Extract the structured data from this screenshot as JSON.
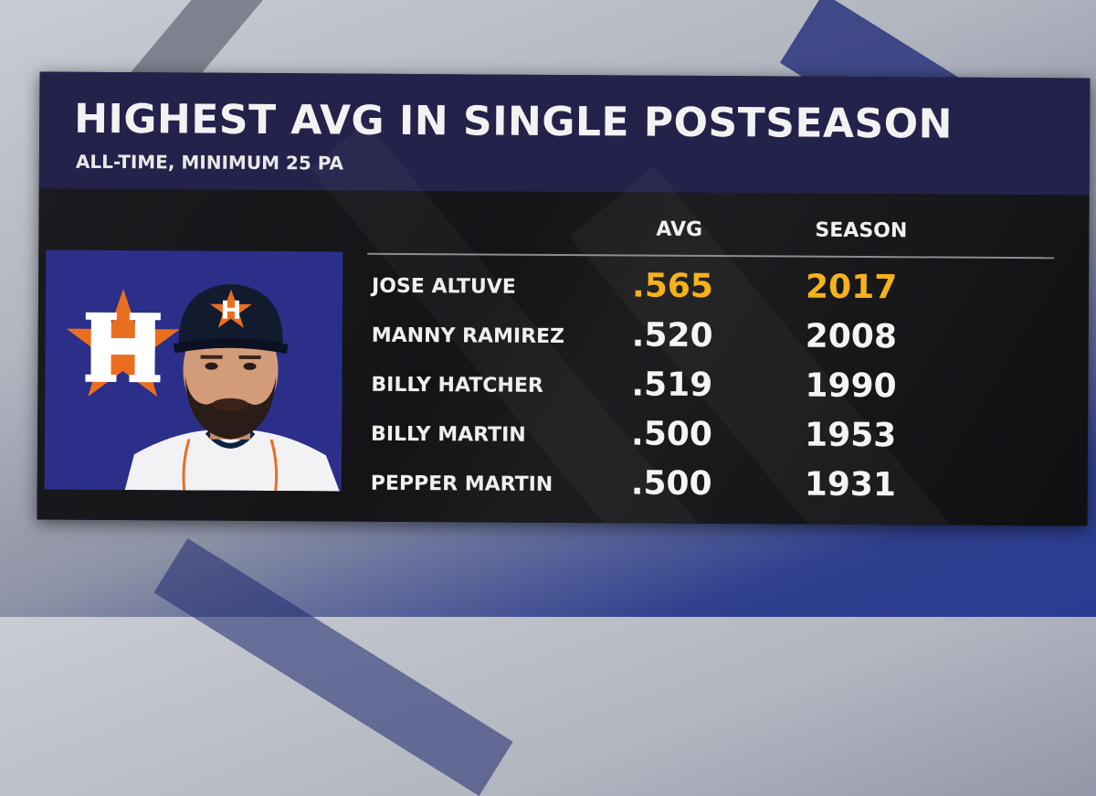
{
  "graphic": {
    "title": "HIGHEST AVG IN SINGLE POSTSEASON",
    "subtitle": "ALL-TIME, MINIMUM 25 PA"
  },
  "table": {
    "columns": [
      "AVG",
      "SEASON"
    ],
    "rows": [
      {
        "player": "JOSE ALTUVE",
        "avg": ".565",
        "season": "2017",
        "highlighted": true
      },
      {
        "player": "MANNY RAMIREZ",
        "avg": ".520",
        "season": "2008",
        "highlighted": false
      },
      {
        "player": "BILLY HATCHER",
        "avg": ".519",
        "season": "1990",
        "highlighted": false
      },
      {
        "player": "BILLY MARTIN",
        "avg": ".500",
        "season": "1953",
        "highlighted": false
      },
      {
        "player": "PEPPER MARTIN",
        "avg": ".500",
        "season": "1931",
        "highlighted": false
      }
    ]
  },
  "media": {
    "team_logo_icon": "astros-h-star-logo",
    "player_photo": "player-headshot"
  },
  "colors": {
    "header_bg": "#23224a",
    "panel_bg": "#101014",
    "photo_bg": "#2b2f8a",
    "highlight": "#f6b21b",
    "logo_orange": "#eb6e1f",
    "text": "#f2f2f2"
  }
}
